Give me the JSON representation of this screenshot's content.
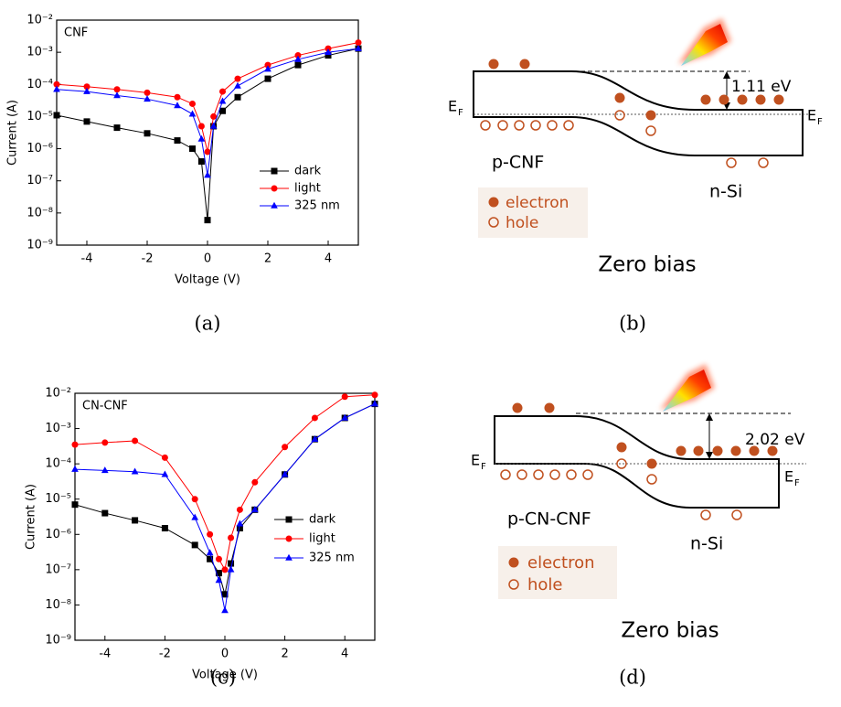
{
  "chart_data": [
    {
      "type": "line",
      "annotation": "CNF",
      "x_label": "Voltage (V)",
      "y_label": "Current (A)",
      "yscale": "log",
      "legend": "center right",
      "xlim": [
        -5,
        5
      ],
      "xticks": [
        -4,
        -2,
        0,
        2,
        4
      ],
      "ylim": [
        1e-09,
        0.01
      ],
      "yticks": [
        {
          "value": 1e-09,
          "label": "10⁻⁹"
        },
        {
          "value": 1e-08,
          "label": "10⁻⁸"
        },
        {
          "value": 1e-07,
          "label": "10⁻⁷"
        },
        {
          "value": 1e-06,
          "label": "10⁻⁶"
        },
        {
          "value": 1e-05,
          "label": "10⁻⁵"
        },
        {
          "value": 0.0001,
          "label": "10⁻⁴"
        },
        {
          "value": 0.001,
          "label": "10⁻³"
        },
        {
          "value": 0.01,
          "label": "10⁻²"
        }
      ],
      "x": [
        -5,
        -4,
        -3,
        -2,
        -1,
        -0.5,
        -0.2,
        0,
        0.2,
        0.5,
        1,
        2,
        3,
        4,
        5
      ],
      "series": [
        {
          "name": "dark",
          "color": "#000000",
          "marker": "square",
          "values": [
            1.1e-05,
            7e-06,
            4.5e-06,
            3e-06,
            1.8e-06,
            1e-06,
            4e-07,
            6e-09,
            5e-06,
            1.5e-05,
            4e-05,
            0.00015,
            0.0004,
            0.0008,
            0.0013
          ]
        },
        {
          "name": "light",
          "color": "#ff0000",
          "marker": "circle",
          "values": [
            0.0001,
            8.5e-05,
            7e-05,
            5.5e-05,
            4e-05,
            2.5e-05,
            5e-06,
            8e-07,
            1e-05,
            6e-05,
            0.00015,
            0.0004,
            0.0008,
            0.0013,
            0.002
          ]
        },
        {
          "name": "325 nm",
          "color": "#0000ff",
          "marker": "triangle",
          "values": [
            7e-05,
            6e-05,
            4.5e-05,
            3.5e-05,
            2.2e-05,
            1.2e-05,
            2e-06,
            1.5e-07,
            5e-06,
            3e-05,
            9e-05,
            0.0003,
            0.0006,
            0.001,
            0.0013
          ]
        }
      ]
    },
    {
      "type": "line",
      "annotation": "CN-CNF",
      "x_label": "Voltage (V)",
      "y_label": "Current (A)",
      "yscale": "log",
      "legend": "lower right",
      "xlim": [
        -5,
        5
      ],
      "xticks": [
        -4,
        -2,
        0,
        2,
        4
      ],
      "ylim": [
        1e-09,
        0.01
      ],
      "yticks": [
        {
          "value": 1e-09,
          "label": "10⁻⁹"
        },
        {
          "value": 1e-08,
          "label": "10⁻⁸"
        },
        {
          "value": 1e-07,
          "label": "10⁻⁷"
        },
        {
          "value": 1e-06,
          "label": "10⁻⁶"
        },
        {
          "value": 1e-05,
          "label": "10⁻⁵"
        },
        {
          "value": 0.0001,
          "label": "10⁻⁴"
        },
        {
          "value": 0.001,
          "label": "10⁻³"
        },
        {
          "value": 0.01,
          "label": "10⁻²"
        }
      ],
      "x": [
        -5,
        -4,
        -3,
        -2,
        -1,
        -0.5,
        -0.2,
        0,
        0.2,
        0.5,
        1,
        2,
        3,
        4,
        5
      ],
      "series": [
        {
          "name": "dark",
          "color": "#000000",
          "marker": "square",
          "values": [
            7e-06,
            4e-06,
            2.5e-06,
            1.5e-06,
            5e-07,
            2e-07,
            8e-08,
            2e-08,
            1.5e-07,
            1.5e-06,
            5e-06,
            5e-05,
            0.0005,
            0.002,
            0.005
          ]
        },
        {
          "name": "light",
          "color": "#ff0000",
          "marker": "circle",
          "values": [
            0.00035,
            0.0004,
            0.00045,
            0.00015,
            1e-05,
            1e-06,
            2e-07,
            1e-07,
            8e-07,
            5e-06,
            3e-05,
            0.0003,
            0.002,
            0.008,
            0.009
          ]
        },
        {
          "name": "325 nm",
          "color": "#0000ff",
          "marker": "triangle",
          "values": [
            7e-05,
            6.5e-05,
            6e-05,
            5e-05,
            3e-06,
            3e-07,
            5e-08,
            7e-09,
            1e-07,
            2e-06,
            5e-06,
            5e-05,
            0.0005,
            0.002,
            0.005
          ]
        }
      ]
    }
  ],
  "diagrams": [
    {
      "energy": "1.11 eV",
      "ef_main": "E",
      "ef_sub": "F",
      "left_label": "p-CNF",
      "right_label": "n-Si",
      "legend": [
        "electron",
        "hole"
      ],
      "title": "Zero bias"
    },
    {
      "energy": "2.02 eV",
      "ef_main": "E",
      "ef_sub": "F",
      "left_label": "p-CN-CNF",
      "right_label": "n-Si",
      "legend": [
        "electron",
        "hole"
      ],
      "title": "Zero bias"
    }
  ],
  "captions": [
    "(a)",
    "(b)",
    "(c)",
    "(d)"
  ]
}
